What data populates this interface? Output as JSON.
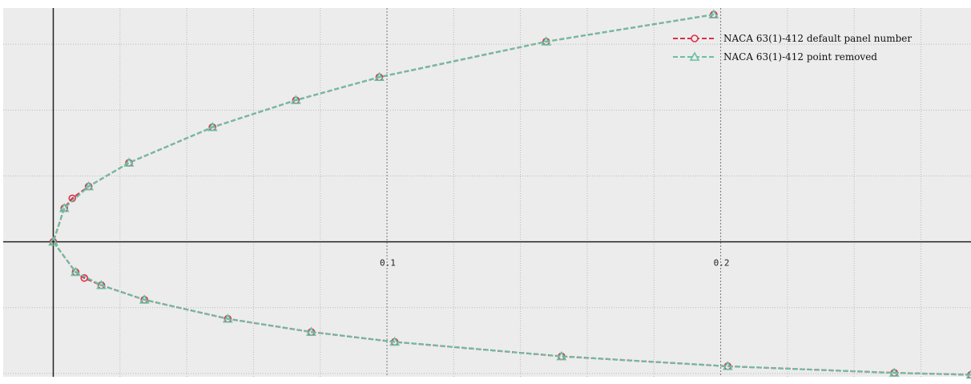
{
  "chart_data": {
    "type": "line",
    "title": "",
    "xlabel": "",
    "ylabel": "",
    "xlim": [
      -0.015,
      0.275
    ],
    "ylim": [
      -0.0205,
      0.0355
    ],
    "grid": true,
    "legend_position": "top-right",
    "x_ticks": [
      0.1,
      0.2
    ],
    "x_tick_labels": [
      "0.1",
      "0.2"
    ],
    "series": [
      {
        "name": "NACA 63(1)-412 default panel number",
        "color": "#d9314a",
        "marker": "circle",
        "points": [
          [
            0.1979,
            0.0345
          ],
          [
            0.1477,
            0.0304
          ],
          [
            0.0977,
            0.025
          ],
          [
            0.0727,
            0.0215
          ],
          [
            0.0477,
            0.0174
          ],
          [
            0.0227,
            0.012
          ],
          [
            0.0106,
            0.0084
          ],
          [
            0.0057,
            0.0066
          ],
          [
            0.0033,
            0.0051
          ],
          [
            0.0,
            0.0
          ],
          [
            0.0067,
            -0.0046
          ],
          [
            0.0093,
            -0.0055
          ],
          [
            0.0144,
            -0.0066
          ],
          [
            0.0273,
            -0.0088
          ],
          [
            0.0523,
            -0.0117
          ],
          [
            0.0773,
            -0.0137
          ],
          [
            0.1023,
            -0.0152
          ],
          [
            0.1523,
            -0.0174
          ],
          [
            0.2021,
            -0.0189
          ],
          [
            0.252,
            -0.0199
          ],
          [
            0.275,
            -0.0202
          ]
        ]
      },
      {
        "name": "NACA 63(1)-412 point removed",
        "color": "#6bbfa3",
        "marker": "triangle",
        "points": [
          [
            0.1979,
            0.0345
          ],
          [
            0.1477,
            0.0304
          ],
          [
            0.0977,
            0.025
          ],
          [
            0.0727,
            0.0215
          ],
          [
            0.0477,
            0.0174
          ],
          [
            0.0227,
            0.012
          ],
          [
            0.0106,
            0.0084
          ],
          [
            0.0033,
            0.0051
          ],
          [
            0.0,
            0.0
          ],
          [
            0.0067,
            -0.0046
          ],
          [
            0.0144,
            -0.0066
          ],
          [
            0.0273,
            -0.0088
          ],
          [
            0.0523,
            -0.0117
          ],
          [
            0.0773,
            -0.0137
          ],
          [
            0.1023,
            -0.0152
          ],
          [
            0.1523,
            -0.0174
          ],
          [
            0.2021,
            -0.0189
          ],
          [
            0.252,
            -0.0199
          ],
          [
            0.275,
            -0.0202
          ]
        ]
      }
    ]
  }
}
